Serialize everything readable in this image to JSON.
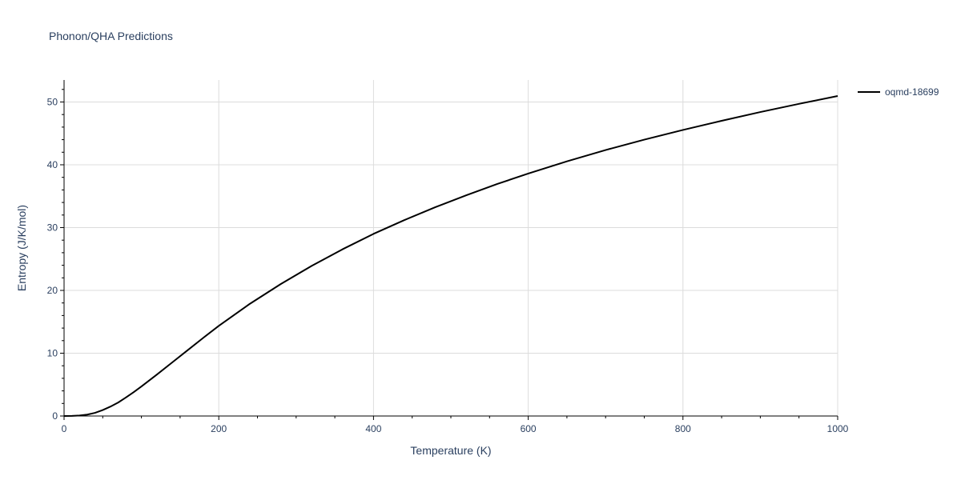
{
  "chart_data": {
    "type": "line",
    "title": "Phonon/QHA Predictions",
    "xlabel": "Temperature (K)",
    "ylabel": "Entropy (J/K/mol)",
    "xlim": [
      0,
      1000
    ],
    "ylim": [
      0,
      53.5
    ],
    "x_ticks": [
      0,
      200,
      400,
      600,
      800,
      1000
    ],
    "y_ticks": [
      0,
      10,
      20,
      30,
      40,
      50
    ],
    "grid": true,
    "legend_position": "top-right",
    "series": [
      {
        "name": "oqmd-18699",
        "color": "#000000",
        "x": [
          0,
          10,
          20,
          30,
          40,
          50,
          60,
          70,
          80,
          90,
          100,
          120,
          140,
          160,
          180,
          200,
          240,
          280,
          320,
          360,
          400,
          440,
          480,
          520,
          560,
          600,
          650,
          700,
          750,
          800,
          850,
          900,
          950,
          1000
        ],
        "y": [
          0,
          0.02,
          0.08,
          0.22,
          0.5,
          0.95,
          1.5,
          2.15,
          2.95,
          3.8,
          4.7,
          6.6,
          8.55,
          10.5,
          12.45,
          14.35,
          17.85,
          21.0,
          23.9,
          26.55,
          29.0,
          31.2,
          33.25,
          35.15,
          36.95,
          38.6,
          40.55,
          42.35,
          44.0,
          45.55,
          47.0,
          48.4,
          49.7,
          50.95
        ]
      }
    ]
  }
}
